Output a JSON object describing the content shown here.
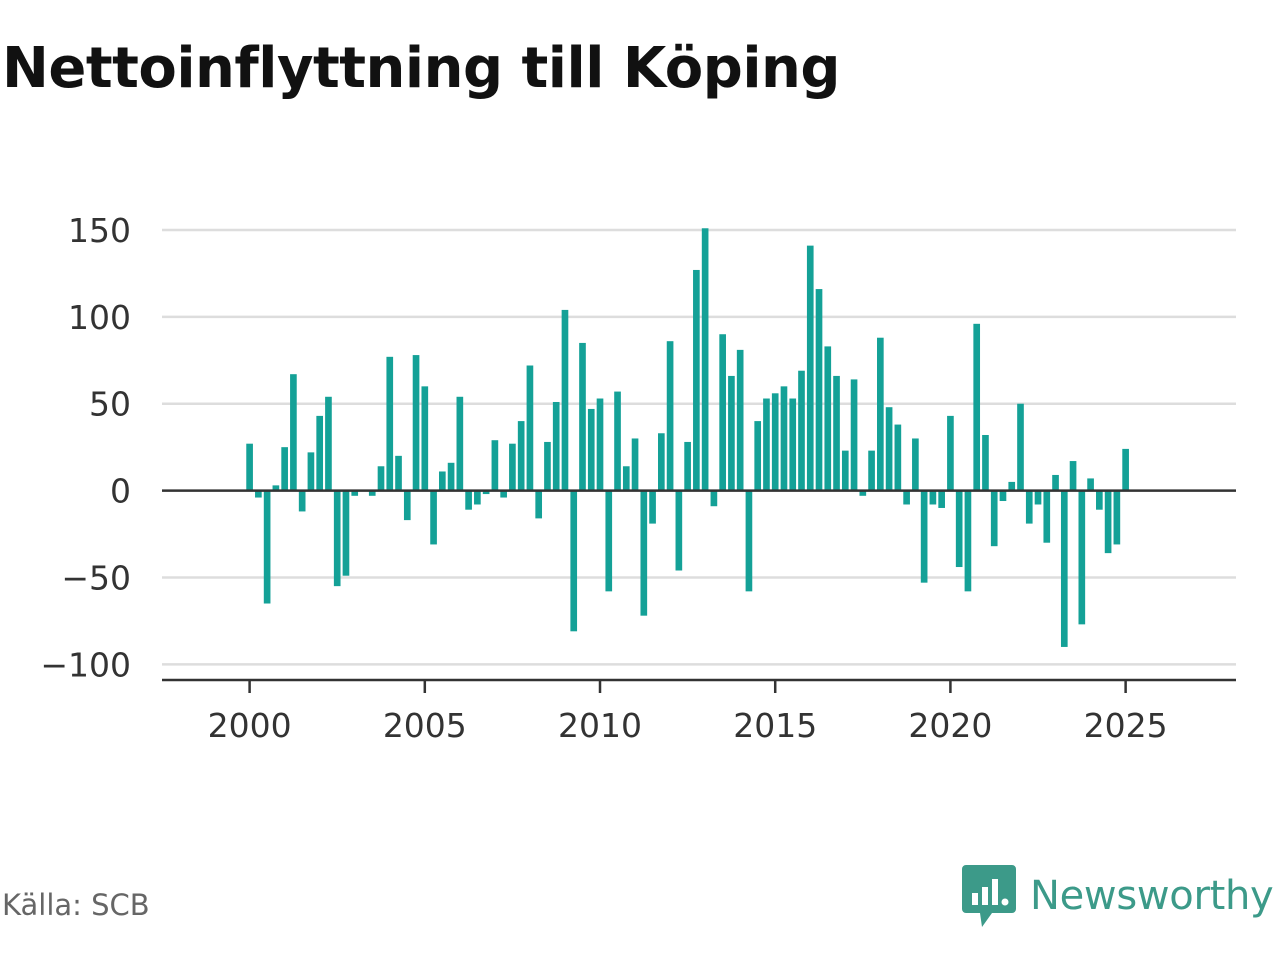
{
  "title": "Nettoinflyttning till Köping",
  "source": "Källa: SCB",
  "brand": {
    "name": "Newsworthy",
    "icon": "newsworthy-logo-icon",
    "color": "#3c9a89"
  },
  "colors": {
    "bar": "#14a197",
    "grid": "#dddddd",
    "axis": "#333333",
    "tick_text": "#333333"
  },
  "chart_data": {
    "type": "bar",
    "title": "Nettoinflyttning till Köping",
    "xlabel": "",
    "ylabel": "",
    "frequency": "quarterly",
    "x_start": 2000,
    "xlim": [
      1997.5,
      2028.15
    ],
    "ylim": [
      -105,
      150
    ],
    "grid": true,
    "x_ticks": [
      2000,
      2005,
      2010,
      2015,
      2020,
      2025
    ],
    "y_ticks": [
      150,
      100,
      50,
      0,
      -50,
      -100
    ],
    "y_tick_labels": [
      "150",
      "100",
      "50",
      "0",
      "−50",
      "−100"
    ],
    "values": [
      27,
      -4,
      -65,
      3,
      25,
      67,
      -12,
      22,
      43,
      54,
      -55,
      -49,
      -3,
      0,
      -3,
      14,
      77,
      20,
      -17,
      78,
      60,
      -31,
      11,
      16,
      54,
      -11,
      -8,
      -2,
      29,
      -4,
      27,
      40,
      72,
      -16,
      28,
      51,
      104,
      -81,
      85,
      47,
      53,
      -58,
      57,
      14,
      30,
      -72,
      -19,
      33,
      86,
      -46,
      28,
      127,
      151,
      -9,
      90,
      66,
      81,
      -58,
      40,
      53,
      56,
      60,
      53,
      69,
      141,
      116,
      83,
      66,
      23,
      64,
      -3,
      23,
      88,
      48,
      38,
      -8,
      30,
      -53,
      -8,
      -10,
      43,
      -44,
      -58,
      96,
      32,
      -32,
      -6,
      5,
      50,
      -19,
      -8,
      -30,
      9,
      -90,
      17,
      -77,
      7,
      -11,
      -36,
      -31,
      24
    ]
  }
}
